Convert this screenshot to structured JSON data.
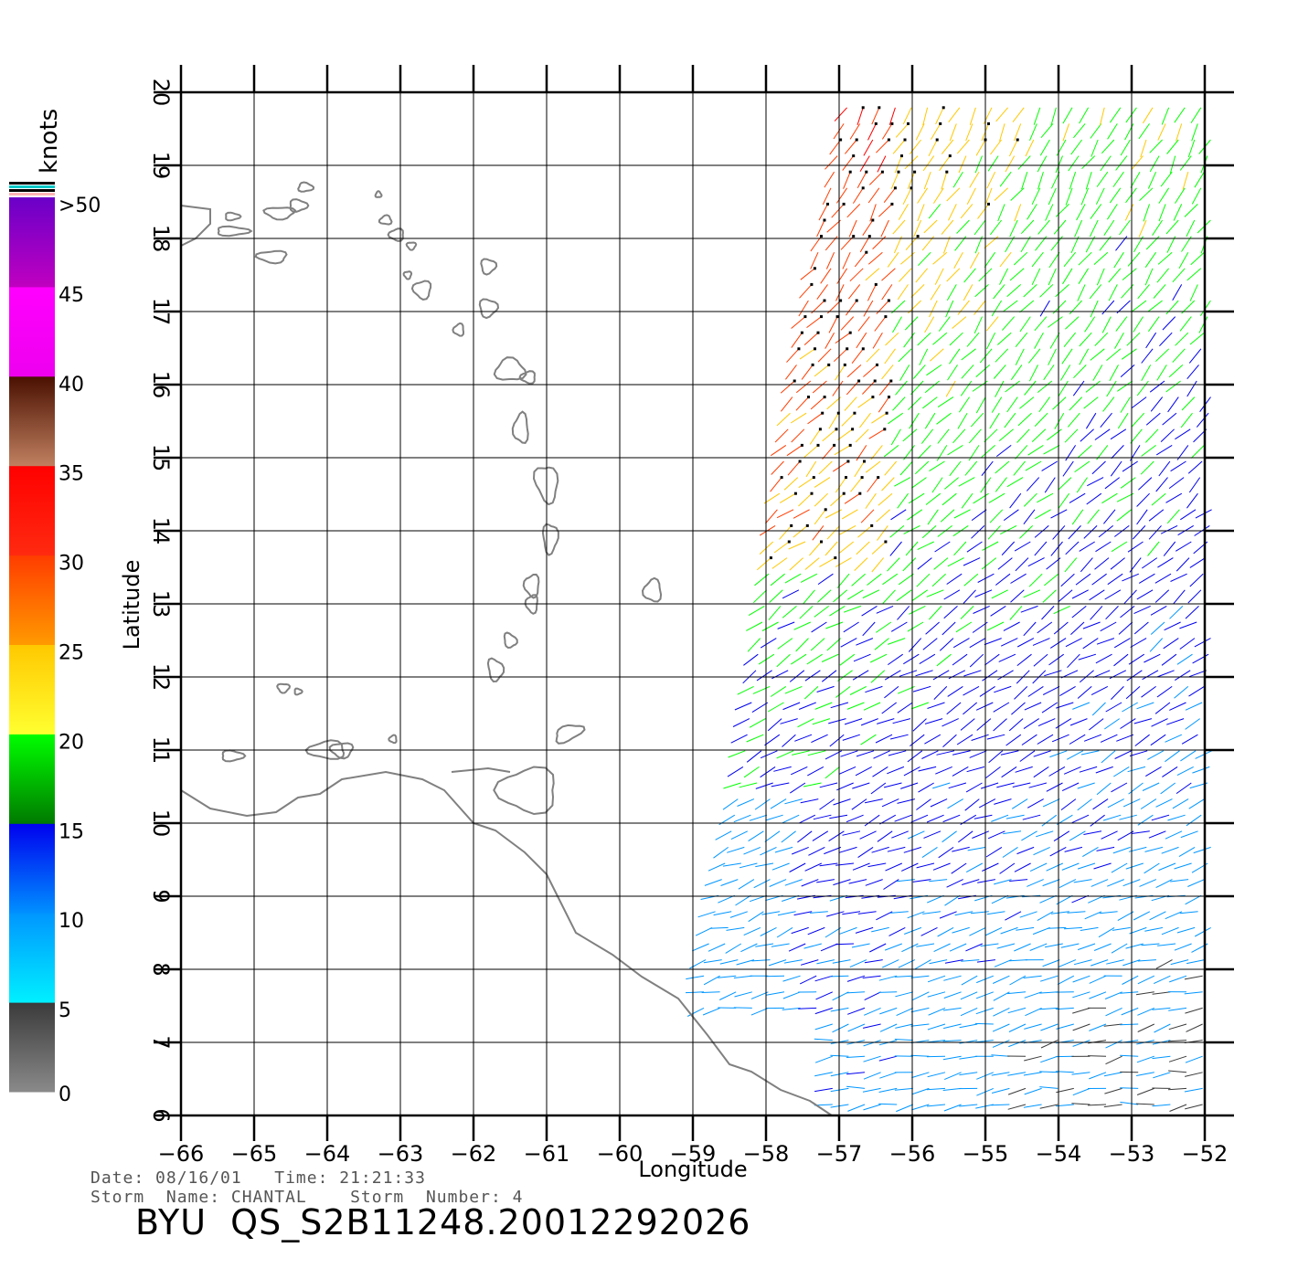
{
  "colorbar": {
    "unit": "knots",
    "labels": [
      ">50",
      "45",
      "40",
      "35",
      "30",
      "25",
      "20",
      "15",
      "10",
      "5",
      "0"
    ],
    "segments": [
      {
        "from": 0,
        "to": 5,
        "top": "#3a3a3a",
        "bottom": "#8a8a8a"
      },
      {
        "from": 5,
        "to": 10,
        "top": "#0096ff",
        "bottom": "#00f0ff"
      },
      {
        "from": 10,
        "to": 15,
        "top": "#0000ee",
        "bottom": "#0090ff"
      },
      {
        "from": 15,
        "to": 20,
        "top": "#00ff00",
        "bottom": "#007a00"
      },
      {
        "from": 20,
        "to": 25,
        "top": "#ffc800",
        "bottom": "#ffff30"
      },
      {
        "from": 25,
        "to": 30,
        "top": "#ff3c00",
        "bottom": "#ff9a00"
      },
      {
        "from": 30,
        "to": 35,
        "top": "#ff0000",
        "bottom": "#ff2a10"
      },
      {
        "from": 35,
        "to": 40,
        "top": "#4a1000",
        "bottom": "#c08060"
      },
      {
        "from": 40,
        "to": 45,
        "top": "#ff00ff",
        "bottom": "#ee00ee"
      },
      {
        "from": 45,
        "to": 50,
        "top": "#6a00c8",
        "bottom": "#c000c0"
      }
    ],
    "top_marks": [
      "#000000",
      "#00c8c8",
      "#000000",
      "#ffb4b4"
    ]
  },
  "map": {
    "x_ticks": [
      "−66",
      "−65",
      "−64",
      "−63",
      "−62",
      "−61",
      "−60",
      "−59",
      "−58",
      "−57",
      "−56",
      "−55",
      "−54",
      "−53",
      "−52"
    ],
    "y_ticks": [
      "6",
      "7",
      "8",
      "9",
      "10",
      "11",
      "12",
      "13",
      "14",
      "15",
      "16",
      "17",
      "18",
      "19",
      "20"
    ],
    "lon_range": [
      -66,
      -52
    ],
    "lat_range": [
      6,
      20
    ],
    "x_label": "Longitude",
    "y_label": "Latitude",
    "coast_color": "#808080",
    "swath_west_edge": [
      [
        -58.9,
        8.0
      ],
      [
        -58.4,
        10.5
      ],
      [
        -58.0,
        13.5
      ],
      [
        -57.6,
        16.5
      ],
      [
        -57.2,
        18.5
      ],
      [
        -56.9,
        20.0
      ]
    ]
  },
  "footer": {
    "line1": "Date: 08/16/01   Time: 21:21:33",
    "line2": "Storm  Name: CHANTAL    Storm  Number: 4",
    "title": "BYU  QS_S2B11248.20012292026"
  }
}
